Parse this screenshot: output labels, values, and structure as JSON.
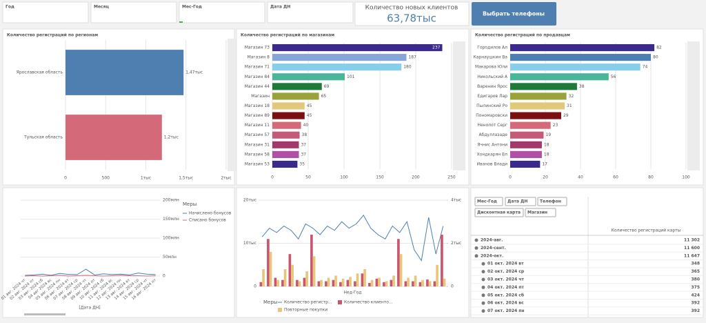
{
  "filters": [
    "Год",
    "Месяц",
    "Мес-Год",
    "Дата ДН"
  ],
  "kpi": {
    "title": "Количество новых клиентов",
    "value": "63,78тыс"
  },
  "button": "Выбрать телефоны",
  "chart_data": [
    {
      "type": "hbar",
      "title": "Количество регистраций по регионам",
      "categories": [
        "Ярославская область",
        "Тульская область"
      ],
      "values": [
        1470,
        1200
      ],
      "value_labels": [
        "1,47тыс",
        "1,2тыс"
      ],
      "colors": [
        "#4e7fb0",
        "#d4697a"
      ],
      "xlim": [
        0,
        2000
      ],
      "xticks": [
        0,
        500,
        {
          "value": 1000,
          "label": "1тыс"
        },
        {
          "value": 1500,
          "label": "1,5тыс"
        },
        {
          "value": 2000,
          "label": "2тыс"
        }
      ],
      "grid": true
    },
    {
      "type": "hbar",
      "title": "Количество регистраций по магазинам",
      "categories": [
        "Магазин 73",
        "Магазин 8",
        "Магазин 71",
        "Магазин 84",
        "Магазин 44",
        "Магазин",
        "Магазин 18",
        "Магазин 89",
        "Магазин 11",
        "Магазин 57",
        "Магазин 31",
        "Магазин 58",
        "Магазин 53"
      ],
      "values": [
        237,
        187,
        180,
        101,
        69,
        65,
        45,
        45,
        40,
        38,
        37,
        37,
        35
      ],
      "colors": [
        "#3b2a8c",
        "#86a7d6",
        "#87ceeb",
        "#4bb59a",
        "#1f7a3a",
        "#9aa33a",
        "#e2c87a",
        "#7a1010",
        "#d4697a",
        "#c45a78",
        "#a4376c",
        "#b04ea8",
        "#3b2a8c"
      ],
      "xlim": [
        0,
        250
      ],
      "xticks": [
        0,
        50,
        100,
        150,
        200,
        250
      ],
      "grid": true
    },
    {
      "type": "hbar",
      "title": "Количество регистраций по продавцам",
      "categories": [
        "Городилов Ал",
        "Карнаушкин Ва",
        "Макарова Юли",
        "Никольский А",
        "Варенин Ярос",
        "Едигаров Лар",
        "Пылинский Ро",
        "Пономаровски",
        "Ненолот Серг",
        "Абдуллазаде",
        "Ячнис Антони",
        "Хондкарян Вл",
        "Иванов Влади"
      ],
      "values": [
        82,
        80,
        74,
        56,
        38,
        32,
        31,
        29,
        23,
        19,
        18,
        18,
        17
      ],
      "colors": [
        "#3b2a8c",
        "#4e7fb0",
        "#87ceeb",
        "#4bb59a",
        "#1f7a3a",
        "#9aa33a",
        "#e2c87a",
        "#7a1010",
        "#d4697a",
        "#c45a78",
        "#a4376c",
        "#b04ea8",
        "#3b2a8c"
      ],
      "xlim": [
        0,
        100
      ],
      "xticks": [
        0,
        20,
        40,
        60,
        80,
        100
      ],
      "grid": true
    },
    {
      "type": "line",
      "x_label": "[Дата ДН]",
      "legend_title": "Меры",
      "categories": [
        "01 авг. 2024 чт",
        "02 авг. 2024 пт",
        "03 авг. 2024 сб",
        "04 авг 2024 вс",
        "05 авг. 2024 пн",
        "06 авг. 2024 вт",
        "07 авг. 2024 ср",
        "08 авг. 2024 чт",
        "09 авг. 2024 пт",
        "10 авг. 2024 сб",
        "11 авг. 2024 вс",
        "12 авг. 2024 пн",
        "13 авг. 2024 вт",
        "14 авг. 2024 ср",
        "15 авг. 2024 чт",
        "16 авг. 2024 пт"
      ],
      "series": [
        {
          "name": "Начислено бонусов",
          "color": "#4e7fb0",
          "values": [
            2000000,
            3000000,
            5000000,
            2000000,
            7000000,
            4000000,
            4000000,
            18000000,
            3000000,
            6000000,
            4000000,
            5000000,
            3000000,
            8000000,
            5000000,
            4000000
          ]
        },
        {
          "name": "Списано бонусов",
          "color": "#d4697a",
          "values": [
            0,
            1000000,
            0,
            1000000,
            2000000,
            0,
            1000000,
            2000000,
            1000000,
            0,
            1000000,
            2000000,
            1000000,
            1000000,
            0,
            1000000
          ]
        }
      ],
      "ylim": [
        0,
        200000000
      ],
      "yticks": [
        0,
        {
          "value": 50000000,
          "label": "50млн"
        },
        {
          "value": 100000000,
          "label": "100млн"
        },
        {
          "value": 150000000,
          "label": "150млн"
        },
        {
          "value": 200000000,
          "label": "200млн"
        }
      ],
      "grid": true
    },
    {
      "type": "combo",
      "x_label": "Нед-Год",
      "legend_title": "Меры",
      "categories": [
        null,
        null,
        null,
        null,
        null,
        null,
        null,
        null,
        null,
        null,
        null,
        null,
        null,
        null,
        null,
        null,
        null,
        null,
        null,
        null,
        null,
        null,
        null,
        null,
        null,
        null
      ],
      "series": [
        {
          "name": "Количество регистр...",
          "color": "#4e7fb0",
          "axis": "y2",
          "values": [
            2300,
            2700,
            2500,
            2800,
            2600,
            2200,
            2900,
            2700,
            2400,
            2800,
            2600,
            3000,
            2700,
            2900,
            3300,
            2700,
            2400,
            2200,
            2800,
            2500,
            3000,
            1700,
            1200,
            3200,
            1500,
            2800
          ]
        },
        {
          "name": "Количество клиенто...",
          "color": "#c9566e",
          "values": [
            1000,
            11000,
            2000,
            1500,
            7500,
            1500,
            2000,
            12000,
            1200,
            1200,
            1500,
            1000,
            1500,
            1200,
            3000,
            800,
            1800,
            1000,
            1500,
            11000,
            1200,
            1200,
            1000,
            1600,
            1200,
            12000
          ]
        },
        {
          "name": "Повторные покупки",
          "color": "#e8c77a",
          "values": [
            4000,
            8000,
            1500,
            4000,
            5000,
            1200,
            3500,
            7000,
            1500,
            2000,
            2500,
            1800,
            2200,
            3000,
            4000,
            1500,
            2000,
            1200,
            2500,
            7500,
            2000,
            2500,
            1500,
            1200,
            5000,
            1800
          ]
        }
      ],
      "ylim": [
        0,
        20000
      ],
      "yticks": [
        0,
        {
          "value": 10000,
          "label": "10тыс"
        },
        {
          "value": 20000,
          "label": "20тыс"
        }
      ],
      "y2lim": [
        0,
        4000
      ],
      "y2ticks": [
        0,
        {
          "value": 2000,
          "label": "2тыс"
        },
        {
          "value": 4000,
          "label": "4тыс"
        }
      ],
      "grid": true
    }
  ],
  "table": {
    "chips": [
      "Мес-Год",
      "Дата ДН",
      "Телефон",
      "Дисконтная карта",
      "Магазин"
    ],
    "header": "Количество регистраций карты",
    "rows": [
      [
        "2024-авг.",
        "11 302"
      ],
      [
        "2024-сент.",
        "11 600"
      ],
      [
        "2024-окт.",
        "11 647"
      ],
      [
        "01 окт. 2024 вт",
        "348"
      ],
      [
        "02 окт. 2024 ср",
        "365"
      ],
      [
        "03 окт. 2024 чт",
        "380"
      ],
      [
        "04 окт. 2024 пт",
        "375"
      ],
      [
        "05 окт. 2024 сб",
        "424"
      ],
      [
        "06 окт. 2024 вс",
        "392"
      ],
      [
        "07 окт. 2024 пн",
        "392"
      ]
    ]
  }
}
